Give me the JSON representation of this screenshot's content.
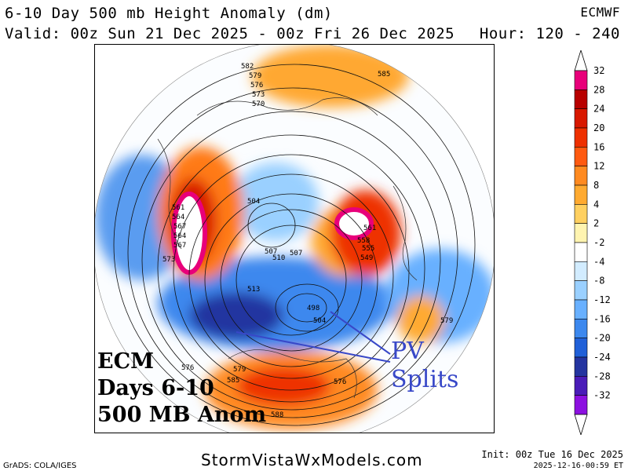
{
  "header": {
    "title": "6-10 Day 500 mb Height Anomaly (dm)",
    "valid": "Valid: 00z Sun 21 Dec 2025 - 00z Fri 26 Dec 2025",
    "model": "ECMWF",
    "hour": "Hour: 120 - 240"
  },
  "colorbar": {
    "levels": [
      "32",
      "28",
      "24",
      "20",
      "16",
      "12",
      "8",
      "4",
      "2",
      "-2",
      "-4",
      "-8",
      "-12",
      "-16",
      "-20",
      "-24",
      "-28",
      "-32"
    ],
    "colors": [
      "#e8007a",
      "#b80000",
      "#d81800",
      "#ee3000",
      "#ff5a10",
      "#ff8a20",
      "#ffaa30",
      "#ffd060",
      "#fff4b0",
      "#ffffff",
      "#d2ecff",
      "#9ad0ff",
      "#68b0ff",
      "#3c88ee",
      "#2060d8",
      "#2434a0",
      "#4a1cb8",
      "#8c10e0"
    ]
  },
  "overlay": {
    "line1": "ECM",
    "line2": "Days 6-10",
    "line3": "500 MB Anom",
    "pv_line1": "PV",
    "pv_line2": "Splits"
  },
  "contour_labels": [
    "582",
    "579",
    "576",
    "573",
    "570",
    "567",
    "564",
    "561",
    "561",
    "564",
    "567",
    "570",
    "573",
    "576",
    "504",
    "507",
    "510",
    "507",
    "513",
    "498",
    "504",
    "561",
    "558",
    "555",
    "549",
    "585",
    "579",
    "576",
    "579",
    "585",
    "588",
    "576",
    "576"
  ],
  "footer": {
    "grads": "GrADS: COLA/IGES",
    "site": "StormVistaWxModels.com",
    "init": "Init: 00z Tue 16 Dec 2025",
    "stamp": "2025-12-16-00:59 ET"
  }
}
